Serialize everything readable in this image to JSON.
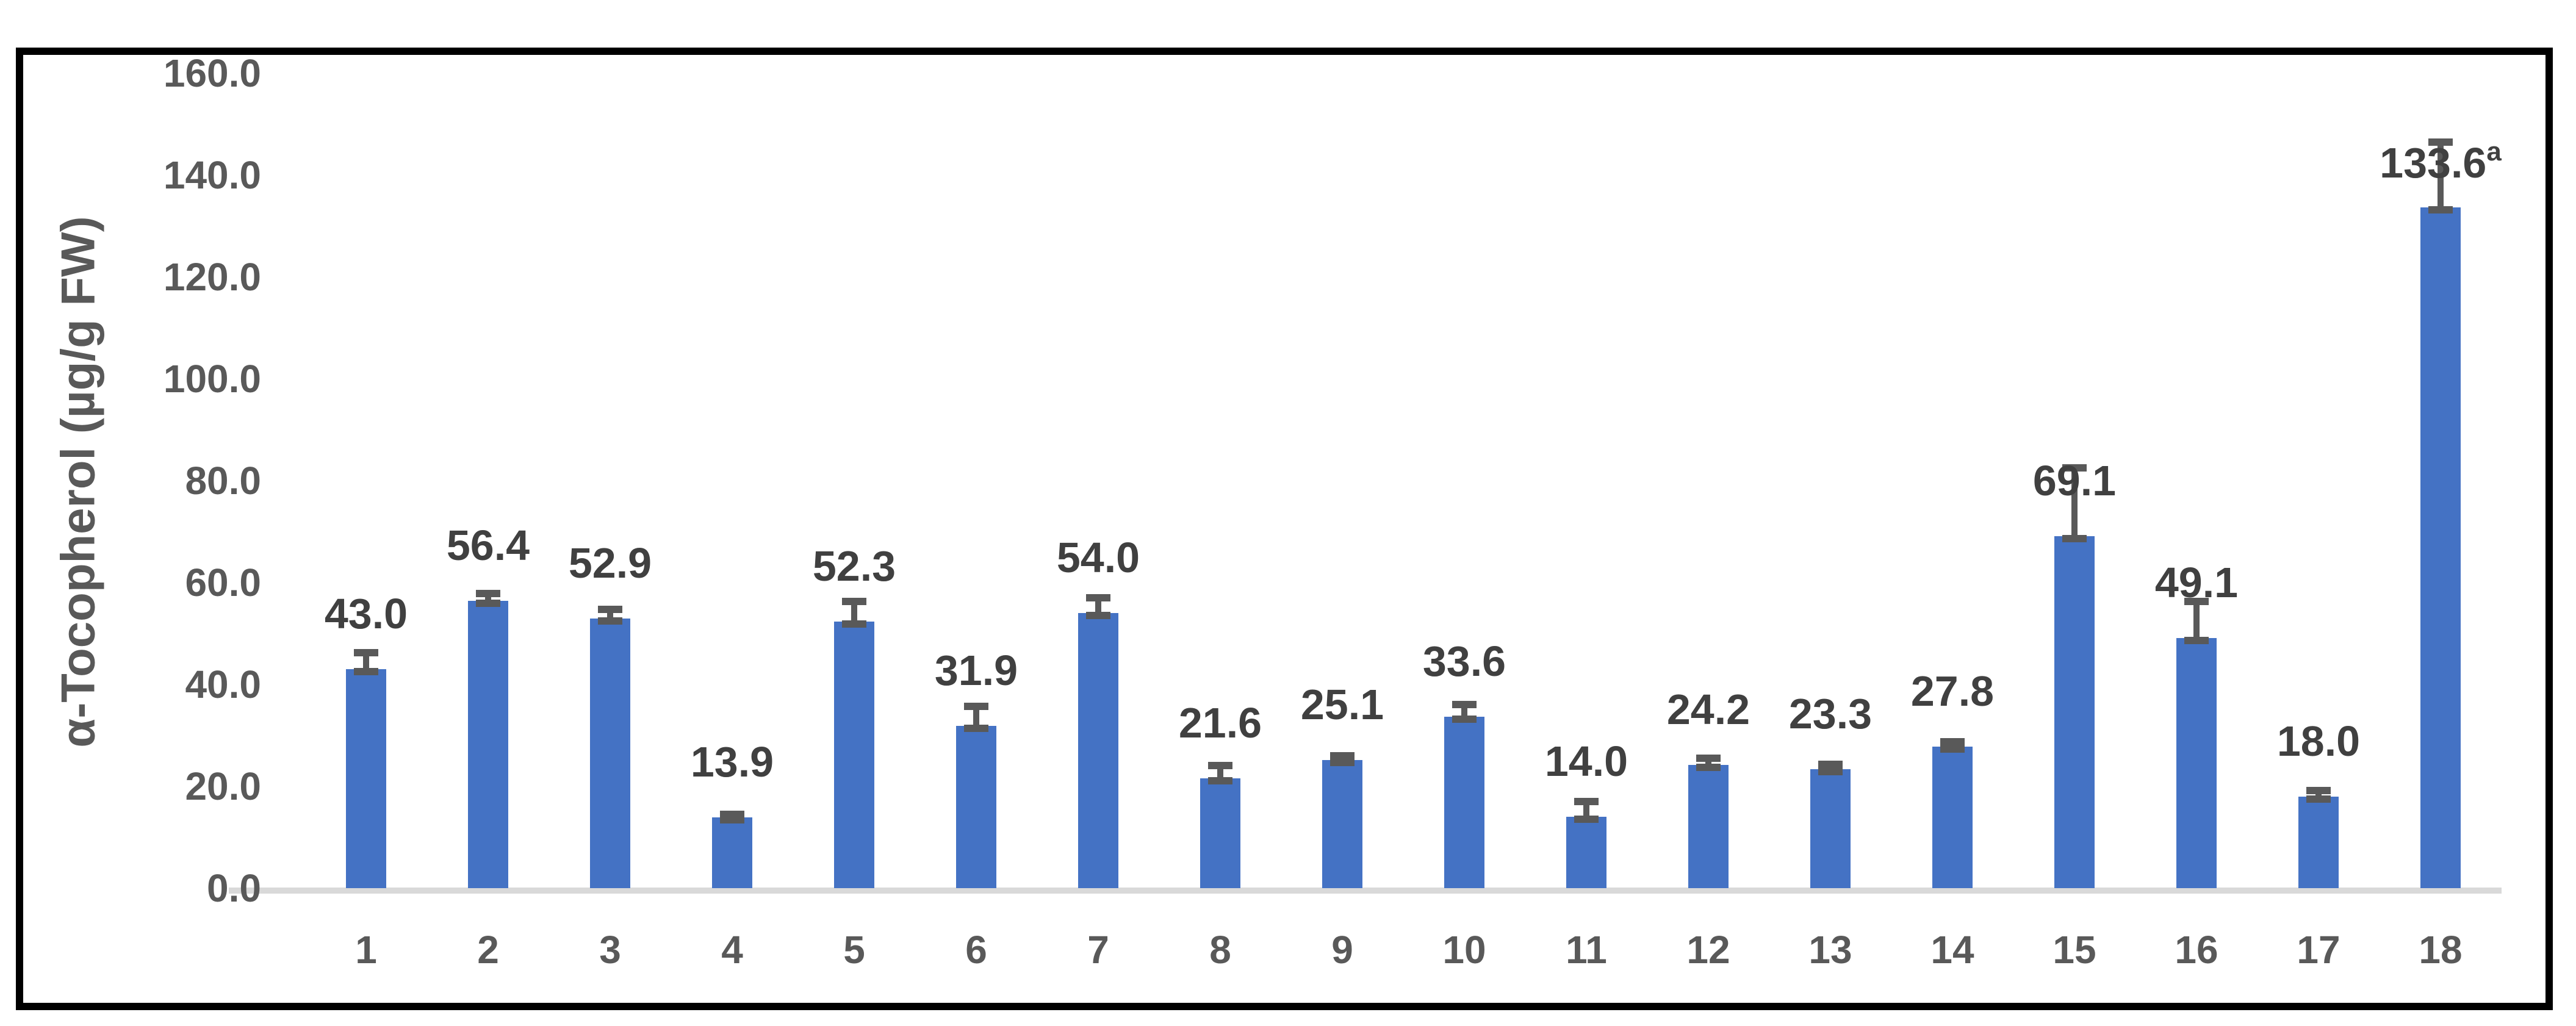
{
  "chart_data": {
    "type": "bar",
    "title": "",
    "xlabel": "",
    "ylabel": "α-Tocopherol (µg/g FW)",
    "ylim": [
      0,
      160
    ],
    "ytick_step": 20,
    "yticks": [
      "0.0",
      "20.0",
      "40.0",
      "60.0",
      "80.0",
      "100.0",
      "120.0",
      "140.0",
      "160.0"
    ],
    "grid": false,
    "legend": false,
    "categories": [
      "1",
      "2",
      "3",
      "4",
      "5",
      "6",
      "7",
      "8",
      "9",
      "10",
      "11",
      "12",
      "13",
      "14",
      "15",
      "16",
      "17",
      "18"
    ],
    "series": [
      {
        "name": "α-Tocopherol",
        "values": [
          43.0,
          56.4,
          52.9,
          13.9,
          52.3,
          31.9,
          54.0,
          21.6,
          25.1,
          33.6,
          14.0,
          24.2,
          23.3,
          27.8,
          69.1,
          49.1,
          18.0,
          133.6
        ],
        "errors_plus": [
          3.2,
          1.4,
          1.8,
          0.6,
          4.0,
          3.8,
          3.0,
          2.5,
          0.8,
          2.4,
          3.0,
          1.3,
          1.0,
          1.0,
          13.4,
          7.2,
          1.2,
          12.8
        ],
        "data_labels": [
          "43.0",
          "56.4",
          "52.9",
          "13.9",
          "52.3",
          "31.9",
          "54.0",
          "21.6",
          "25.1",
          "33.6",
          "14.0",
          "24.2",
          "23.3",
          "27.8",
          "69.1",
          "49.1",
          "18.0",
          "133.6"
        ],
        "label_superscripts": [
          "",
          "",
          "",
          "",
          "",
          "",
          "",
          "",
          "",
          "",
          "",
          "",
          "",
          "",
          "",
          "",
          "",
          "a"
        ]
      }
    ],
    "colors": {
      "bar": "#4472C4",
      "error_bar": "#595959",
      "tick_label": "#595959",
      "axis_title": "#595959",
      "data_label": "#404040",
      "baseline": "#D9D9D9",
      "border": "#000000",
      "background": "#FFFFFF"
    }
  }
}
